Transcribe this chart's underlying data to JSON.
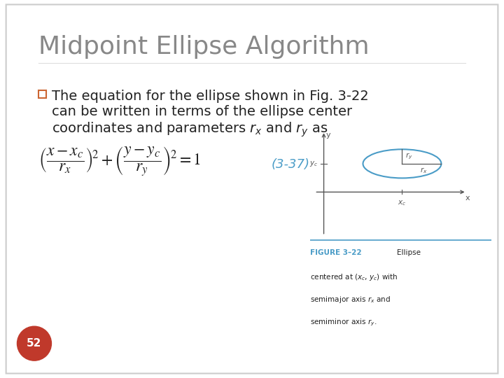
{
  "title": "Midpoint Ellipse Algorithm",
  "title_color": "#888888",
  "title_fontsize": 26,
  "bg_color": "#ffffff",
  "slide_number": "52",
  "slide_number_bg": "#c0392b",
  "bullet_text_line1": "The equation for the ellipse shown in Fig. 3-22",
  "bullet_text_line2": "can be written in terms of the ellipse center",
  "bullet_text_line3a": "coordinates and parameters ",
  "bullet_text_line3b": " and ",
  "bullet_text_line3c": " as",
  "equation_ref": "(3-37)",
  "equation_ref_color": "#4a9cc7",
  "figure_caption_title": "FIGURE 3–22",
  "figure_caption_title_color": "#4a9cc7",
  "ellipse_color": "#4a9cc7",
  "axes_color": "#555555",
  "text_color": "#222222",
  "bullet_color": "#cc6633",
  "formula_color": "#222222",
  "border_color": "#cccccc"
}
